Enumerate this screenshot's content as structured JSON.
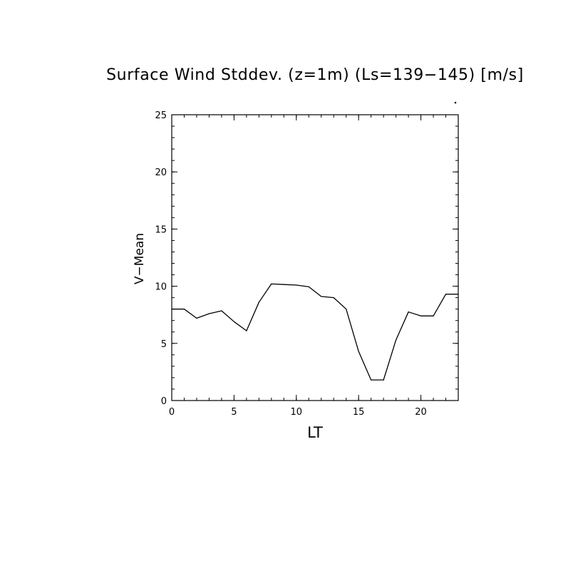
{
  "chart_data": {
    "type": "line",
    "title": "Surface Wind Stddev. (z=1m) (Ls=139−145) [m/s]",
    "xlabel": "LT",
    "ylabel": "V−Mean",
    "xlim": [
      0,
      23
    ],
    "ylim": [
      0,
      25
    ],
    "x_ticks": [
      0,
      5,
      10,
      15,
      20
    ],
    "x_tick_labels": [
      "0",
      "5",
      "10",
      "15",
      "20"
    ],
    "y_ticks": [
      0,
      5,
      10,
      15,
      20,
      25
    ],
    "y_tick_labels": [
      "0",
      "5",
      "10",
      "15",
      "20",
      "25"
    ],
    "x_minor_step": 1,
    "y_minor_step": 1,
    "grid": false,
    "series": [
      {
        "x": [
          0,
          1,
          2,
          3,
          4,
          5,
          6,
          7,
          8,
          9,
          10,
          11,
          12,
          13,
          14,
          15,
          16,
          17,
          18,
          19,
          20,
          21,
          22,
          23
        ],
        "values": [
          8.0,
          8.0,
          7.2,
          7.6,
          7.85,
          6.9,
          6.1,
          8.6,
          10.2,
          10.15,
          10.1,
          9.95,
          9.1,
          9.0,
          8.0,
          4.3,
          1.8,
          1.8,
          5.3,
          7.75,
          7.4,
          7.4,
          9.3,
          9.3
        ],
        "color": "#000000"
      }
    ]
  }
}
